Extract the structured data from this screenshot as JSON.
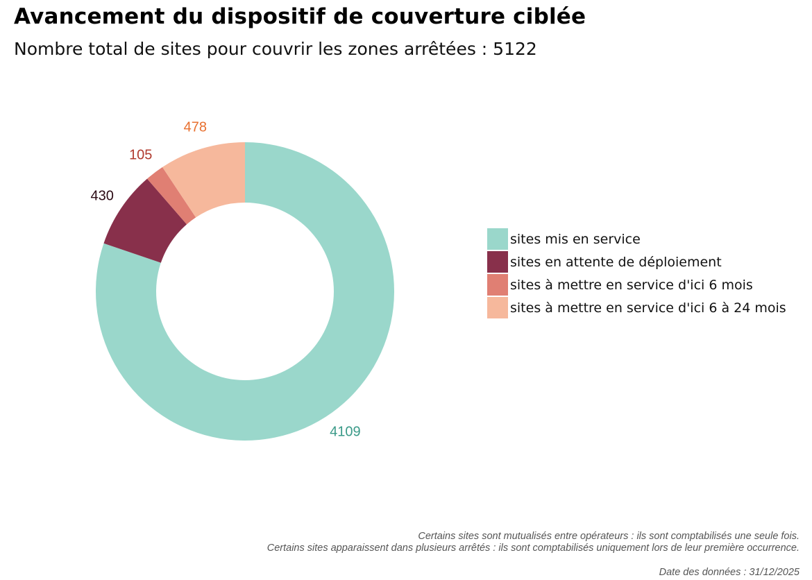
{
  "title": "Avancement du dispositif de couverture ciblée",
  "subtitle": "Nombre total de sites pour couvrir les zones arrêtées : 5122",
  "chart_data": {
    "type": "pie",
    "donut": true,
    "total": 5122,
    "categories": [
      "sites mis en service",
      "sites en attente de déploiement",
      "sites à mettre en service d'ici 6 mois",
      "sites à mettre en service d'ici 6 à 24 mois"
    ],
    "values": [
      4109,
      430,
      105,
      478
    ],
    "colors": [
      "#9AD7CB",
      "#88304B",
      "#E07F73",
      "#F6B89C"
    ],
    "label_colors": [
      "#3A9A88",
      "#2B0A14",
      "#B03A2E",
      "#E8702F"
    ],
    "legend_position": "right"
  },
  "notes": [
    "Certains sites sont mutualisés entre opérateurs : ils sont comptabilisés une seule fois.",
    "Certains sites apparaissent dans plusieurs arrêtés : ils sont comptabilisés uniquement lors de leur première occurrence."
  ],
  "date_note": "Date des données : 31/12/2025"
}
